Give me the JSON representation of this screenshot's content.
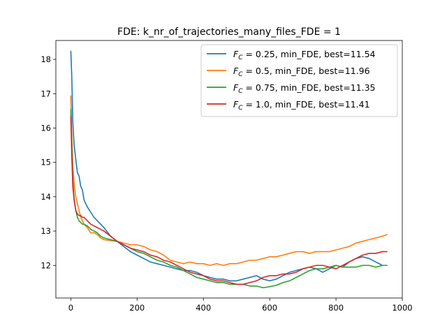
{
  "chart_data": {
    "type": "line",
    "title": "FDE: k_nr_of_trajectories_many_files_FDE = 1",
    "xlabel": "",
    "ylabel": "",
    "xlim": [
      -45,
      1000
    ],
    "ylim": [
      11.05,
      18.55
    ],
    "xticks": [
      0,
      200,
      400,
      600,
      800,
      1000
    ],
    "yticks": [
      12,
      13,
      14,
      15,
      16,
      17,
      18
    ],
    "grid": false,
    "legend_position": "top-right",
    "series": [
      {
        "name": "F_C = 0.25, min_FDE, best=11.54",
        "legend_prefix": "F",
        "legend_sub": "C",
        "legend_rest": " = 0.25, min_FDE, best=11.54",
        "color": "#1f77b4",
        "x": [
          0,
          3,
          6,
          10,
          15,
          20,
          25,
          30,
          35,
          40,
          50,
          60,
          70,
          80,
          90,
          100,
          120,
          140,
          160,
          180,
          200,
          220,
          240,
          260,
          280,
          300,
          320,
          340,
          360,
          380,
          400,
          420,
          440,
          460,
          480,
          500,
          520,
          540,
          560,
          580,
          600,
          620,
          640,
          660,
          680,
          700,
          720,
          740,
          760,
          780,
          800,
          820,
          840,
          860,
          880,
          900,
          920,
          940,
          955
        ],
        "y": [
          18.25,
          17.5,
          16.2,
          15.5,
          15.1,
          14.7,
          14.6,
          14.3,
          14.2,
          13.9,
          13.7,
          13.55,
          13.4,
          13.3,
          13.2,
          13.1,
          12.85,
          12.7,
          12.55,
          12.4,
          12.3,
          12.2,
          12.1,
          12.05,
          12.0,
          11.95,
          11.9,
          11.85,
          11.85,
          11.8,
          11.7,
          11.65,
          11.6,
          11.6,
          11.55,
          11.55,
          11.6,
          11.65,
          11.7,
          11.6,
          11.55,
          11.6,
          11.7,
          11.8,
          11.85,
          11.9,
          11.95,
          11.9,
          11.8,
          11.9,
          12.0,
          11.95,
          12.1,
          12.2,
          12.25,
          12.2,
          12.1,
          12.0,
          12.0
        ]
      },
      {
        "name": "F_C = 0.5, min_FDE, best=11.96",
        "legend_prefix": "F",
        "legend_sub": "C",
        "legend_rest": " = 0.5, min_FDE, best=11.96",
        "color": "#ff7f0e",
        "x": [
          0,
          3,
          6,
          10,
          15,
          20,
          25,
          30,
          35,
          40,
          50,
          60,
          70,
          80,
          90,
          100,
          120,
          140,
          160,
          180,
          200,
          220,
          240,
          260,
          280,
          300,
          320,
          340,
          360,
          380,
          400,
          420,
          440,
          460,
          480,
          500,
          520,
          540,
          560,
          580,
          600,
          620,
          640,
          660,
          680,
          700,
          720,
          740,
          760,
          780,
          800,
          820,
          840,
          860,
          880,
          900,
          920,
          940,
          955
        ],
        "y": [
          16.95,
          15.8,
          14.9,
          14.4,
          14.0,
          13.8,
          13.6,
          13.4,
          13.3,
          13.2,
          13.1,
          12.95,
          12.95,
          12.9,
          12.8,
          12.75,
          12.72,
          12.7,
          12.65,
          12.6,
          12.6,
          12.55,
          12.45,
          12.4,
          12.3,
          12.15,
          12.1,
          12.05,
          12.1,
          12.05,
          12.05,
          12.0,
          12.05,
          12.0,
          12.05,
          12.05,
          12.1,
          12.15,
          12.15,
          12.2,
          12.25,
          12.25,
          12.3,
          12.35,
          12.4,
          12.4,
          12.35,
          12.4,
          12.4,
          12.4,
          12.45,
          12.5,
          12.55,
          12.65,
          12.7,
          12.75,
          12.8,
          12.85,
          12.9
        ]
      },
      {
        "name": "F_C = 0.75, min_FDE, best=11.35",
        "legend_prefix": "F",
        "legend_sub": "C",
        "legend_rest": " = 0.75, min_FDE, best=11.35",
        "color": "#2ca02c",
        "x": [
          0,
          3,
          6,
          10,
          15,
          20,
          25,
          30,
          35,
          40,
          50,
          60,
          70,
          80,
          90,
          100,
          120,
          140,
          160,
          180,
          200,
          220,
          240,
          260,
          280,
          300,
          320,
          340,
          360,
          380,
          400,
          420,
          440,
          460,
          480,
          500,
          520,
          540,
          560,
          580,
          600,
          620,
          640,
          660,
          680,
          700,
          720,
          740,
          760,
          780,
          800,
          820,
          840,
          860,
          880,
          900,
          920,
          940,
          955
        ],
        "y": [
          16.55,
          15.5,
          14.5,
          13.95,
          13.6,
          13.4,
          13.3,
          13.25,
          13.2,
          13.2,
          13.15,
          13.05,
          13.0,
          12.95,
          12.85,
          12.8,
          12.75,
          12.7,
          12.6,
          12.5,
          12.4,
          12.35,
          12.25,
          12.15,
          12.1,
          12.0,
          11.95,
          11.85,
          11.75,
          11.65,
          11.6,
          11.55,
          11.5,
          11.5,
          11.45,
          11.45,
          11.45,
          11.4,
          11.4,
          11.35,
          11.38,
          11.42,
          11.5,
          11.55,
          11.65,
          11.75,
          11.85,
          11.9,
          11.9,
          11.95,
          12.0,
          11.95,
          11.95,
          11.95,
          12.0,
          12.0,
          11.95,
          12.0,
          12.0
        ]
      },
      {
        "name": "F_C = 1.0, min_FDE, best=11.41",
        "legend_prefix": "F",
        "legend_sub": "C",
        "legend_rest": " = 1.0, min_FDE, best=11.41",
        "color": "#d62728",
        "x": [
          0,
          3,
          6,
          10,
          15,
          20,
          25,
          30,
          35,
          40,
          50,
          60,
          70,
          80,
          90,
          100,
          120,
          140,
          160,
          180,
          200,
          220,
          240,
          260,
          280,
          300,
          320,
          340,
          360,
          380,
          400,
          420,
          440,
          460,
          480,
          500,
          520,
          540,
          560,
          580,
          600,
          620,
          640,
          660,
          680,
          700,
          720,
          740,
          760,
          780,
          800,
          820,
          840,
          860,
          880,
          900,
          920,
          940,
          955
        ],
        "y": [
          16.35,
          15.2,
          14.3,
          13.9,
          13.6,
          13.5,
          13.45,
          13.45,
          13.4,
          13.4,
          13.3,
          13.2,
          13.15,
          13.1,
          13.05,
          13.0,
          12.85,
          12.7,
          12.6,
          12.5,
          12.45,
          12.4,
          12.3,
          12.25,
          12.15,
          12.1,
          12.0,
          11.9,
          11.8,
          11.75,
          11.7,
          11.6,
          11.55,
          11.55,
          11.5,
          11.45,
          11.45,
          11.5,
          11.55,
          11.65,
          11.7,
          11.7,
          11.75,
          11.75,
          11.8,
          11.9,
          11.95,
          12.0,
          12.0,
          11.95,
          11.9,
          12.0,
          12.1,
          12.2,
          12.3,
          12.35,
          12.35,
          12.4,
          12.4
        ]
      }
    ]
  }
}
